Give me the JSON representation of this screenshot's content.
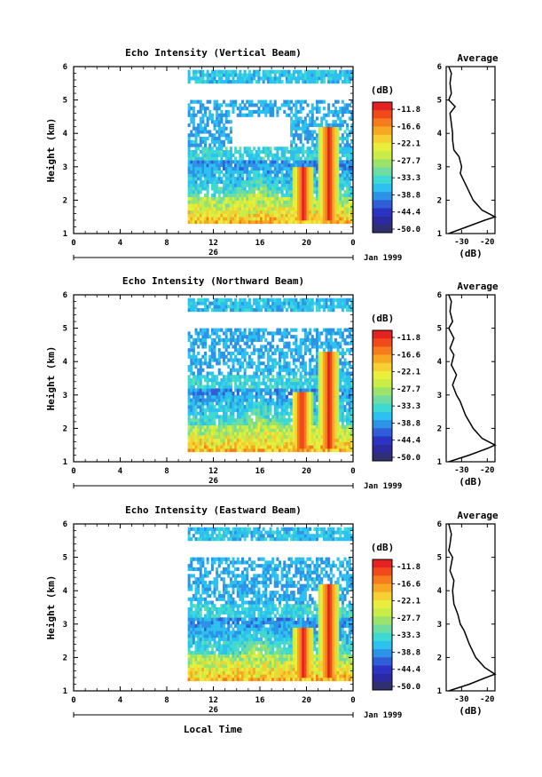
{
  "figure": {
    "panel_titles": [
      "Echo Intensity (Vertical Beam)",
      "Echo Intensity (Northward Beam)",
      "Echo Intensity (Eastward Beam)"
    ],
    "ylabel": "Height (km)",
    "xlabel": "Local Time",
    "date_label": "26",
    "month_label": "Jan 1999",
    "colorbar_unit": "(dB)",
    "colorbar_ticks": [
      "-11.8",
      "-16.6",
      "-22.1",
      "-27.7",
      "-33.3",
      "-38.8",
      "-44.4",
      "-50.0"
    ],
    "colorbar_colors": [
      "#e52222",
      "#f04a1a",
      "#f57c1c",
      "#f7a823",
      "#f6d032",
      "#e9ee3c",
      "#c9ec46",
      "#9be36a",
      "#6fdda2",
      "#3fd9d3",
      "#2cc1ee",
      "#2d93e6",
      "#2f5ed8",
      "#2a33c4",
      "#2b2aa0",
      "#302f72"
    ],
    "avg_title": "Average",
    "avg_xlabel": "(dB)"
  },
  "chart_data": [
    {
      "type": "heatmap",
      "title": "Echo Intensity (Vertical Beam)",
      "xlabel": "",
      "ylabel": "Height (km)",
      "x_ticks": [
        "0",
        "4",
        "8",
        "12",
        "16",
        "20",
        "0"
      ],
      "y_ticks": [
        "1",
        "2",
        "3",
        "4",
        "5",
        "6"
      ],
      "xlim": [
        0,
        24
      ],
      "ylim": [
        1,
        6
      ],
      "colorbar": {
        "unit": "(dB)",
        "range": [
          -50.0,
          -11.8
        ]
      },
      "data_start_hour": 9.8,
      "features": [
        {
          "name": "strong echo column",
          "hour": 19.6,
          "height_range": [
            1.4,
            3.0
          ],
          "dB": -11.8
        },
        {
          "name": "strong echo column",
          "hour": 21.8,
          "height_range": [
            1.4,
            4.2
          ],
          "dB": -11.8
        },
        {
          "name": "low layer",
          "hour_range": [
            9.8,
            24
          ],
          "height_range": [
            1.4,
            2.0
          ],
          "dB": -20
        }
      ],
      "inset": {
        "title": "Average",
        "xlabel": "(dB)",
        "x_ticks": [
          "-30",
          "-20"
        ],
        "y_ticks": [
          "1",
          "2",
          "3",
          "4",
          "5",
          "6"
        ],
        "xlim": [
          -36,
          -17
        ],
        "profile": [
          {
            "height": 1.0,
            "dB": -35
          },
          {
            "height": 1.2,
            "dB": -28
          },
          {
            "height": 1.4,
            "dB": -21
          },
          {
            "height": 1.5,
            "dB": -17
          },
          {
            "height": 1.7,
            "dB": -22
          },
          {
            "height": 2.0,
            "dB": -25.5
          },
          {
            "height": 2.4,
            "dB": -28
          },
          {
            "height": 2.8,
            "dB": -30.5
          },
          {
            "height": 3.0,
            "dB": -30
          },
          {
            "height": 3.3,
            "dB": -31
          },
          {
            "height": 3.5,
            "dB": -33
          },
          {
            "height": 3.8,
            "dB": -33.5
          },
          {
            "height": 4.0,
            "dB": -33.5
          },
          {
            "height": 4.3,
            "dB": -34
          },
          {
            "height": 4.6,
            "dB": -34.5
          },
          {
            "height": 4.8,
            "dB": -32.5
          },
          {
            "height": 5.0,
            "dB": -35
          },
          {
            "height": 5.2,
            "dB": -34
          },
          {
            "height": 5.5,
            "dB": -34.5
          },
          {
            "height": 5.8,
            "dB": -34
          },
          {
            "height": 6.0,
            "dB": -35
          }
        ]
      }
    },
    {
      "type": "heatmap",
      "title": "Echo Intensity (Northward Beam)",
      "xlabel": "",
      "ylabel": "Height (km)",
      "x_ticks": [
        "0",
        "4",
        "8",
        "12",
        "16",
        "20",
        "0"
      ],
      "y_ticks": [
        "1",
        "2",
        "3",
        "4",
        "5",
        "6"
      ],
      "xlim": [
        0,
        24
      ],
      "ylim": [
        1,
        6
      ],
      "colorbar": {
        "unit": "(dB)",
        "range": [
          -50.0,
          -11.8
        ]
      },
      "data_start_hour": 9.8,
      "features": [
        {
          "name": "strong echo column",
          "hour": 19.5,
          "height_range": [
            1.4,
            3.1
          ],
          "dB": -11.8
        },
        {
          "name": "strong echo column",
          "hour": 21.8,
          "height_range": [
            1.4,
            4.3
          ],
          "dB": -11.8
        },
        {
          "name": "low layer",
          "hour_range": [
            9.8,
            24
          ],
          "height_range": [
            1.4,
            1.7
          ],
          "dB": -16.6
        }
      ],
      "inset": {
        "title": "Average",
        "xlabel": "(dB)",
        "x_ticks": [
          "-30",
          "-20"
        ],
        "y_ticks": [
          "1",
          "2",
          "3",
          "4",
          "5",
          "6"
        ],
        "xlim": [
          -36,
          -17
        ],
        "profile": [
          {
            "height": 1.0,
            "dB": -35
          },
          {
            "height": 1.2,
            "dB": -27
          },
          {
            "height": 1.4,
            "dB": -20
          },
          {
            "height": 1.5,
            "dB": -17
          },
          {
            "height": 1.7,
            "dB": -22
          },
          {
            "height": 2.0,
            "dB": -25.5
          },
          {
            "height": 2.4,
            "dB": -28.5
          },
          {
            "height": 2.8,
            "dB": -30.5
          },
          {
            "height": 3.0,
            "dB": -32
          },
          {
            "height": 3.3,
            "dB": -33.5
          },
          {
            "height": 3.6,
            "dB": -32
          },
          {
            "height": 3.9,
            "dB": -34
          },
          {
            "height": 4.2,
            "dB": -33
          },
          {
            "height": 4.4,
            "dB": -34.5
          },
          {
            "height": 4.7,
            "dB": -33
          },
          {
            "height": 5.0,
            "dB": -35
          },
          {
            "height": 5.2,
            "dB": -33.5
          },
          {
            "height": 5.5,
            "dB": -34.5
          },
          {
            "height": 5.8,
            "dB": -34
          },
          {
            "height": 6.0,
            "dB": -35
          }
        ]
      }
    },
    {
      "type": "heatmap",
      "title": "Echo Intensity (Eastward Beam)",
      "xlabel": "Local Time",
      "ylabel": "Height (km)",
      "x_ticks": [
        "0",
        "4",
        "8",
        "12",
        "16",
        "20",
        "0"
      ],
      "y_ticks": [
        "1",
        "2",
        "3",
        "4",
        "5",
        "6"
      ],
      "xlim": [
        0,
        24
      ],
      "ylim": [
        1,
        6
      ],
      "colorbar": {
        "unit": "(dB)",
        "range": [
          -50.0,
          -11.8
        ]
      },
      "data_start_hour": 9.8,
      "features": [
        {
          "name": "strong echo column",
          "hour": 19.6,
          "height_range": [
            1.4,
            2.9
          ],
          "dB": -11.8
        },
        {
          "name": "strong echo column",
          "hour": 21.8,
          "height_range": [
            1.4,
            4.2
          ],
          "dB": -11.8
        },
        {
          "name": "low layer",
          "hour_range": [
            9.8,
            24
          ],
          "height_range": [
            1.4,
            2.0
          ],
          "dB": -22.1
        }
      ],
      "inset": {
        "title": "Average",
        "xlabel": "(dB)",
        "x_ticks": [
          "-30",
          "-20"
        ],
        "y_ticks": [
          "1",
          "2",
          "3",
          "4",
          "5",
          "6"
        ],
        "xlim": [
          -36,
          -17
        ],
        "profile": [
          {
            "height": 1.0,
            "dB": -35
          },
          {
            "height": 1.2,
            "dB": -27
          },
          {
            "height": 1.4,
            "dB": -20.5
          },
          {
            "height": 1.5,
            "dB": -17
          },
          {
            "height": 1.7,
            "dB": -21
          },
          {
            "height": 2.0,
            "dB": -24.5
          },
          {
            "height": 2.4,
            "dB": -27
          },
          {
            "height": 2.8,
            "dB": -29
          },
          {
            "height": 3.0,
            "dB": -30.5
          },
          {
            "height": 3.3,
            "dB": -31.5
          },
          {
            "height": 3.6,
            "dB": -33
          },
          {
            "height": 4.0,
            "dB": -33.5
          },
          {
            "height": 4.3,
            "dB": -33
          },
          {
            "height": 4.6,
            "dB": -34.5
          },
          {
            "height": 5.0,
            "dB": -33.5
          },
          {
            "height": 5.2,
            "dB": -35
          },
          {
            "height": 5.4,
            "dB": -34.5
          },
          {
            "height": 5.7,
            "dB": -34
          },
          {
            "height": 6.0,
            "dB": -35
          }
        ]
      }
    }
  ]
}
